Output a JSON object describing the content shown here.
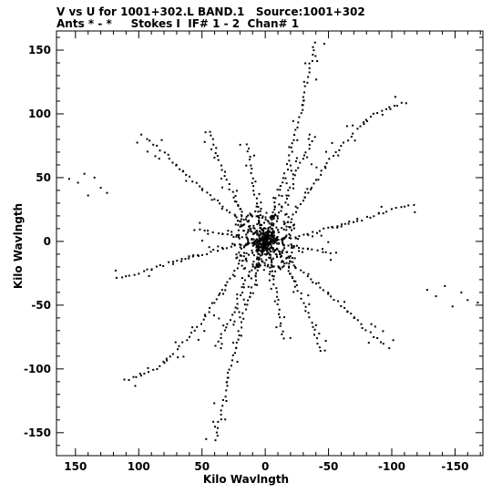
{
  "header": {
    "line1": "V vs U for 1001+302.L BAND.1   Source:1001+302",
    "line2": "Ants * - *     Stokes I  IF# 1 - 2  Chan# 1"
  },
  "chart_data": {
    "type": "scatter",
    "xlabel": "Kilo Wavlngth",
    "ylabel": "Kilo Wavlngth",
    "xlim": [
      165,
      -172
    ],
    "ylim": [
      -168,
      165
    ],
    "xticks": [
      150,
      100,
      50,
      0,
      -50,
      -100,
      -150
    ],
    "yticks": [
      150,
      100,
      50,
      0,
      -50,
      -100,
      -150
    ],
    "grid": false,
    "marker_color": "#000000",
    "symmetric": true,
    "arms": [
      {
        "u": [
          -8,
          -18,
          -28,
          -40
        ],
        "v": [
          30,
          60,
          100,
          160
        ]
      },
      {
        "u": [
          -20,
          -35,
          -55,
          -85,
          -115
        ],
        "v": [
          18,
          40,
          70,
          100,
          110
        ]
      },
      {
        "u": [
          -30,
          -50,
          -70,
          -100,
          -120
        ],
        "v": [
          5,
          10,
          15,
          25,
          30
        ]
      },
      {
        "u": [
          -15,
          -30,
          -45,
          -60
        ],
        "v": [
          -3,
          -5,
          -8,
          -10
        ]
      },
      {
        "u": [
          -30,
          -55,
          -80,
          -100
        ],
        "v": [
          -25,
          -45,
          -70,
          -85
        ]
      },
      {
        "u": [
          -5,
          -10,
          -15
        ],
        "v": [
          -20,
          -50,
          -80
        ]
      },
      {
        "u": [
          10,
          25,
          35,
          45
        ],
        "v": [
          10,
          35,
          60,
          90
        ]
      },
      {
        "u": [
          -5,
          -15,
          -25,
          -40
        ],
        "v": [
          10,
          30,
          55,
          85
        ]
      }
    ],
    "isolated_points": [
      {
        "u": 155,
        "v": 49
      },
      {
        "u": 148,
        "v": 46
      },
      {
        "u": 143,
        "v": 53
      },
      {
        "u": 140,
        "v": 36
      },
      {
        "u": 135,
        "v": 50
      },
      {
        "u": 130,
        "v": 42
      },
      {
        "u": 125,
        "v": 38
      },
      {
        "u": -128,
        "v": -38
      },
      {
        "u": -135,
        "v": -43
      },
      {
        "u": -142,
        "v": -35
      },
      {
        "u": -148,
        "v": -51
      },
      {
        "u": -155,
        "v": -40
      },
      {
        "u": -160,
        "v": -46
      },
      {
        "u": -168,
        "v": -48
      }
    ]
  }
}
